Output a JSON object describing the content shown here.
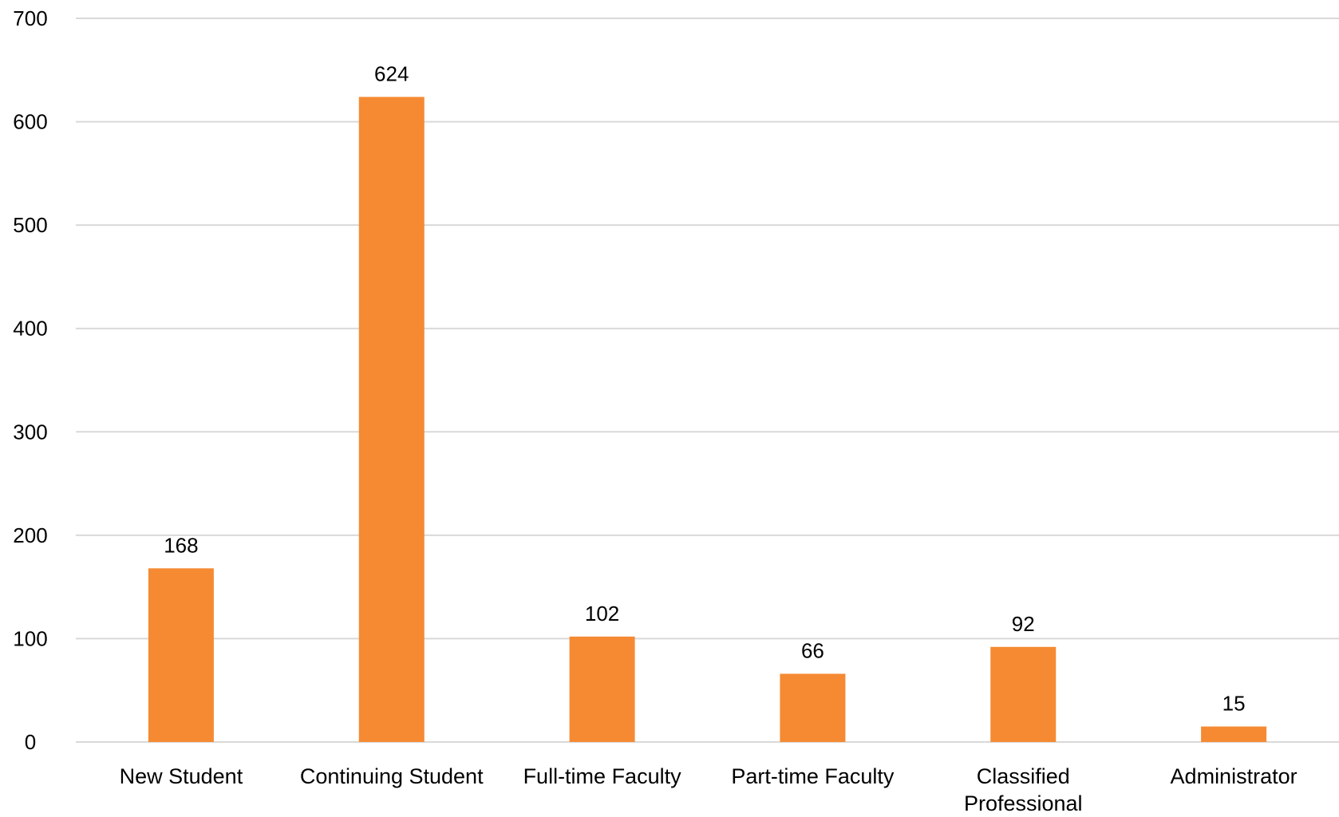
{
  "chart_data": {
    "type": "bar",
    "categories": [
      [
        "New Student"
      ],
      [
        "Continuing Student"
      ],
      [
        "Full-time Faculty"
      ],
      [
        "Part-time Faculty"
      ],
      [
        "Classified",
        "Professional"
      ],
      [
        "Administrator"
      ]
    ],
    "values": [
      168,
      624,
      102,
      66,
      92,
      15
    ],
    "data_labels": [
      "168",
      "624",
      "102",
      "66",
      "92",
      "15"
    ],
    "yticks": [
      0,
      100,
      200,
      300,
      400,
      500,
      600,
      700
    ],
    "ylim": [
      0,
      700
    ],
    "title": "",
    "xlabel": "",
    "ylabel": "",
    "grid": true,
    "legend": "none",
    "bar_color": "#f58a33",
    "grid_color": "#d9d9d9"
  }
}
